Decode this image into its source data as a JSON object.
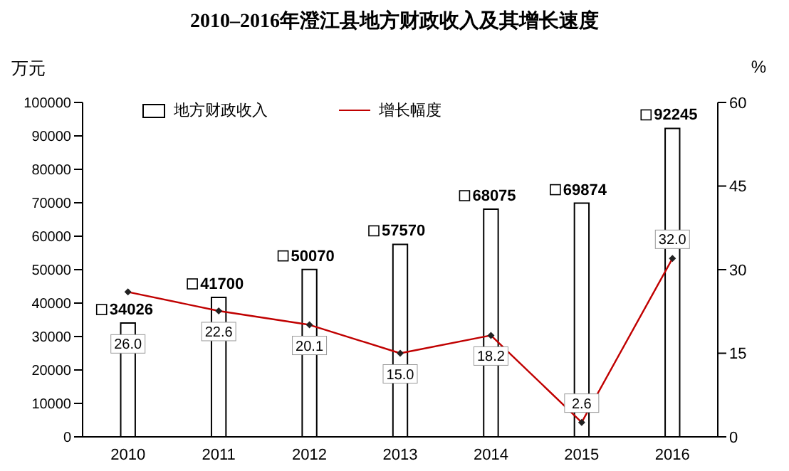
{
  "chart_data": {
    "type": "bar",
    "title": "2010–2016年澄江县地方财政收入及其增长速度",
    "ylabel": "万元",
    "y2label": "%",
    "categories": [
      "2010",
      "2011",
      "2012",
      "2013",
      "2014",
      "2015",
      "2016"
    ],
    "series": [
      {
        "name": "地方财政收入",
        "color": "#ffffff",
        "values": [
          34026,
          41700,
          50070,
          57570,
          68075,
          69874,
          92245
        ],
        "value_labels": [
          "34026",
          "41700",
          "50070",
          "57570",
          "68075",
          "69874",
          "92245"
        ]
      },
      {
        "name": "增长幅度",
        "type": "line",
        "axis": "y2",
        "color": "#c00000",
        "marker": "diamond",
        "values": [
          26.0,
          22.6,
          20.1,
          15.0,
          18.2,
          2.6,
          32.0
        ],
        "value_labels": [
          "26.0",
          "22.6",
          "20.1",
          "15.0",
          "18.2",
          "2.6",
          "32.0"
        ]
      }
    ],
    "ylim": [
      0,
      100000
    ],
    "yticks": [
      0,
      10000,
      20000,
      30000,
      40000,
      50000,
      60000,
      70000,
      80000,
      90000,
      100000
    ],
    "y2lim": [
      0,
      60
    ],
    "y2ticks": [
      0,
      15,
      30,
      45,
      60
    ],
    "legend": "top"
  }
}
